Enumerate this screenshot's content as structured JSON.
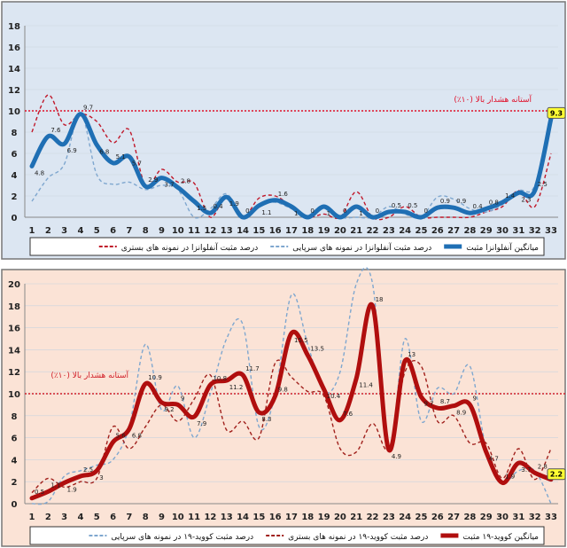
{
  "chart_data": [
    {
      "type": "line",
      "title": "",
      "ylim": [
        0,
        18
      ],
      "yticks": [
        0,
        2,
        4,
        6,
        8,
        10,
        12,
        14,
        16,
        18
      ],
      "x": [
        1,
        2,
        3,
        4,
        5,
        6,
        7,
        8,
        9,
        10,
        11,
        12,
        13,
        14,
        15,
        16,
        17,
        18,
        19,
        20,
        21,
        22,
        23,
        24,
        25,
        26,
        27,
        28,
        29,
        30,
        31,
        32,
        33
      ],
      "threshold": {
        "value": 10,
        "label": "آستانه هشدار بالا (۱۰٪)",
        "color": "#e0102a"
      },
      "series": [
        {
          "name": "درصد مثبت آنفلوانزا در نمونه های بستری",
          "style": "dashed",
          "color": "#c0182a",
          "values": [
            8,
            11.5,
            8.7,
            9.7,
            9,
            7,
            8.2,
            3,
            4.5,
            3.3,
            3.2,
            0,
            2,
            0,
            1.8,
            2,
            1,
            0,
            0.3,
            0,
            2.4,
            0,
            0,
            1,
            0,
            0,
            0,
            0,
            0.5,
            1,
            2.5,
            1,
            6
          ]
        },
        {
          "name": "درصد مثبت آنفلوانزا در نمونه های سرپایی",
          "style": "dashed",
          "color": "#7fa7cf",
          "values": [
            1.5,
            3.7,
            5,
            9.8,
            4,
            3.1,
            3.3,
            2.6,
            3,
            2.6,
            0,
            0.8,
            2.2,
            0,
            1.2,
            1.4,
            0.8,
            0,
            1,
            0,
            0,
            0,
            1,
            0.3,
            0,
            1.9,
            1.7,
            0.8,
            0.5,
            1.2,
            2.5,
            3,
            10
          ]
        },
        {
          "name": "میانگین آنفلوانزا مثبت",
          "style": "thick",
          "color": "#1f6fb4",
          "values": [
            4.8,
            7.6,
            6.9,
            9.7,
            6.8,
            5.1,
            5.7,
            2.9,
            3.7,
            2.8,
            1.5,
            0.4,
            1.9,
            0,
            1.1,
            1.6,
            1,
            0,
            1,
            0,
            1,
            0,
            0.5,
            0.5,
            0,
            0.9,
            0.9,
            0.4,
            0.8,
            1.4,
            2.3,
            2.5,
            9.3
          ],
          "labeled": true
        }
      ],
      "last_value_badge": "9.3",
      "legend": "bottom",
      "background": "#dce6f2"
    },
    {
      "type": "line",
      "title": "",
      "ylim": [
        0,
        20
      ],
      "yticks": [
        0,
        2,
        4,
        6,
        8,
        10,
        12,
        14,
        16,
        18,
        20
      ],
      "x": [
        1,
        2,
        3,
        4,
        5,
        6,
        7,
        8,
        9,
        10,
        11,
        12,
        13,
        14,
        15,
        16,
        17,
        18,
        19,
        20,
        21,
        22,
        23,
        24,
        25,
        26,
        27,
        28,
        29,
        30,
        31,
        32,
        33
      ],
      "threshold": {
        "value": 10,
        "label": "آستانه هشدار بالا (۱۰٪)",
        "color": "#d0202a"
      },
      "series": [
        {
          "name": "درصد مثبت کووید-۱۹ در نمونه های سرپایی",
          "style": "dashed",
          "color": "#7fa7cf",
          "values": [
            0,
            0.2,
            2.5,
            3,
            3.5,
            4,
            7,
            14.5,
            8.5,
            10.7,
            6,
            10,
            15,
            16.3,
            7,
            10,
            19,
            14.5,
            10.2,
            12,
            20,
            20,
            4.9,
            15,
            7.5,
            10.5,
            10,
            12.5,
            5,
            2,
            3,
            3,
            0
          ]
        },
        {
          "name": "درصد مثبت کووید-۱۹ در نمونه های بستری",
          "style": "dashed",
          "color": "#a0201c",
          "values": [
            1,
            2.3,
            1.5,
            2,
            2.3,
            7,
            5,
            7,
            9,
            7.5,
            9.5,
            11.7,
            6.7,
            7.5,
            6,
            12.8,
            11.5,
            10.2,
            9.8,
            5,
            4.7,
            7.3,
            5,
            12,
            12.5,
            7.5,
            8,
            5.5,
            5.5,
            2.3,
            5,
            2.2,
            5
          ]
        },
        {
          "name": "میانگین کووید-۱۹ مثبت",
          "style": "thick",
          "color": "#b00e0e",
          "values": [
            0.5,
            1.1,
            1.9,
            2.5,
            3,
            5.6,
            6.8,
            10.9,
            9.2,
            9,
            7.9,
            10.8,
            11.2,
            11.7,
            8.3,
            9.8,
            15.5,
            13.5,
            10.4,
            7.6,
            11.4,
            18,
            4.9,
            13,
            9.7,
            8.7,
            8.9,
            9,
            4.7,
            1.9,
            3.7,
            2.8,
            2.2
          ],
          "labeled": true
        }
      ],
      "last_value_badge": "2.2",
      "legend": "bottom",
      "background": "#fbe3d6"
    }
  ]
}
